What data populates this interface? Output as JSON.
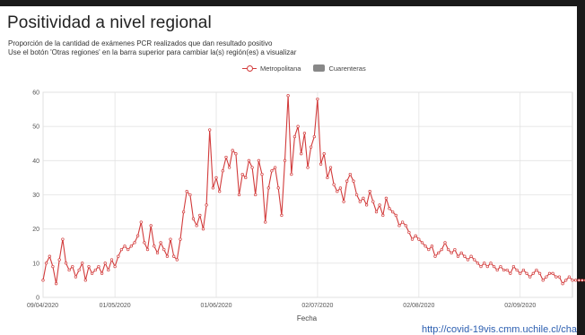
{
  "header": {
    "title": "Positividad a nivel regional",
    "subtitle_1": "Proporción de la cantidad de exámenes PCR realizados que dan resultado positivo",
    "subtitle_2": "Use el botón 'Otras regiones' en la barra superior para cambiar la(s) región(es) a visualizar"
  },
  "footer": {
    "url_text": "http://covid-19vis.cmm.uchile.cl/cha"
  },
  "colors": {
    "series": "#d23b3b",
    "grid": "#e3e3e3",
    "axis": "#cccccc"
  },
  "chart_data": {
    "type": "line",
    "title": "Positividad a nivel regional",
    "xlabel": "Fecha",
    "ylabel": "",
    "ylim": [
      0,
      60
    ],
    "yticks": [
      0,
      10,
      20,
      30,
      40,
      50,
      60
    ],
    "xlim": [
      "2020-04-09",
      "2020-09-18"
    ],
    "xticks": [
      {
        "label": "09/04/2020",
        "date": "2020-04-09"
      },
      {
        "label": "01/05/2020",
        "date": "2020-05-01"
      },
      {
        "label": "01/06/2020",
        "date": "2020-06-01"
      },
      {
        "label": "02/07/2020",
        "date": "2020-07-02"
      },
      {
        "label": "02/08/2020",
        "date": "2020-08-02"
      },
      {
        "label": "02/09/2020",
        "date": "2020-09-02"
      }
    ],
    "grid": true,
    "legend_position": "top-center",
    "legend": [
      {
        "name": "Metropolitana",
        "marker": "line-circle",
        "color": "#d23b3b"
      },
      {
        "name": "Cuarenteras",
        "marker": "box",
        "color": "#888888"
      }
    ],
    "series": [
      {
        "name": "Metropolitana",
        "color": "#d23b3b",
        "start_date": "2020-04-09",
        "values": [
          5,
          10,
          12,
          9,
          4,
          11,
          17,
          10,
          8,
          9,
          6,
          8,
          10,
          5,
          9,
          7,
          8,
          9,
          7,
          10,
          8,
          11,
          9,
          12,
          14,
          15,
          14,
          15,
          16,
          18,
          22,
          16,
          14,
          21,
          15,
          13,
          16,
          14,
          12,
          17,
          12,
          11,
          17,
          25,
          31,
          30,
          23,
          21,
          24,
          20,
          27,
          49,
          32,
          35,
          31,
          37,
          41,
          38,
          43,
          42,
          30,
          36,
          35,
          40,
          38,
          30,
          40,
          36,
          22,
          32,
          37,
          38,
          32,
          24,
          40,
          59,
          36,
          47,
          50,
          42,
          48,
          38,
          44,
          47,
          58,
          39,
          42,
          35,
          38,
          33,
          31,
          32,
          28,
          34,
          36,
          34,
          30,
          28,
          29,
          27,
          31,
          28,
          25,
          27,
          24,
          29,
          26,
          25,
          24,
          21,
          22,
          21,
          19,
          17,
          18,
          17,
          16,
          15,
          14,
          15,
          12,
          13,
          14,
          16,
          14,
          13,
          14,
          12,
          13,
          12,
          11,
          12,
          11,
          10,
          9,
          10,
          9,
          10,
          9,
          8,
          9,
          8,
          8,
          7,
          9,
          8,
          7,
          8,
          7,
          6,
          7,
          8,
          7,
          5,
          6,
          7,
          7,
          6,
          6,
          4,
          5,
          6,
          5,
          5,
          5,
          5,
          5,
          5,
          5,
          5,
          5,
          5,
          5,
          5,
          6,
          5,
          5,
          4,
          4,
          5,
          5,
          6,
          5
        ]
      }
    ]
  }
}
